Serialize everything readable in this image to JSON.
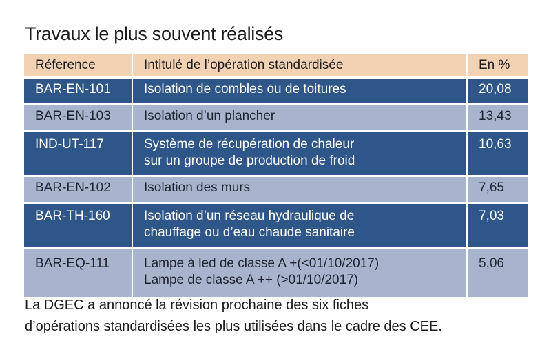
{
  "title": "Travaux le plus souvent réalisés",
  "table": {
    "headers": [
      "Réference",
      "Intitulé de l’opération standardisée",
      "En %"
    ],
    "rows": [
      {
        "ref": "BAR-EN-101",
        "label": [
          "Isolation de combles ou de toitures"
        ],
        "pct": "20,08",
        "style": "dark"
      },
      {
        "ref": "BAR-EN-103",
        "label": [
          "Isolation d’un plancher"
        ],
        "pct": "13,43",
        "style": "light"
      },
      {
        "ref": "IND-UT-117",
        "label": [
          "Système de récupération de chaleur",
          "sur un groupe de production de froid"
        ],
        "pct": "10,63",
        "style": "dark"
      },
      {
        "ref": "BAR-EN-102",
        "label": [
          "Isolation des murs"
        ],
        "pct": "7,65",
        "style": "light"
      },
      {
        "ref": "BAR-TH-160",
        "label": [
          "Isolation d’un réseau hydraulique de",
          "chauffage ou d’eau chaude sanitaire"
        ],
        "pct": "7,03",
        "style": "dark"
      },
      {
        "ref": "BAR-EQ-111",
        "label": [
          "Lampe à led de classe A +(<01/10/2017)",
          "Lampe de classe A ++ (>01/10/2017)"
        ],
        "pct": "5,06",
        "style": "light"
      }
    ]
  },
  "footnote": [
    "La DGEC a annoncé la révision prochaine des six fiches",
    "d’opérations standardisées les plus utilisées dans le cadre des CEE."
  ],
  "colors": {
    "header_bg": "#f3d2b4",
    "dark_row_bg": "#2f5688",
    "light_row_bg": "#a8b4cd"
  }
}
